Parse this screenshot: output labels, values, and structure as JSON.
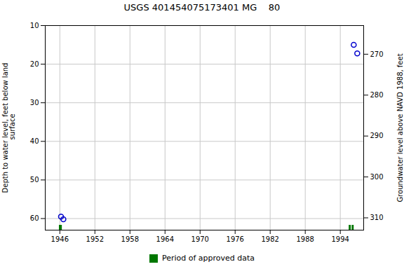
{
  "chart_data": {
    "type": "scatter",
    "title": "USGS 401454075173401 MG    80",
    "ylabel": "Depth to water level, feet below land\n surface",
    "y2label": "Groundwater level above NAVD 1988, feet",
    "xlim": [
      1943.5,
      1998.0
    ],
    "xticks": [
      1946,
      1952,
      1958,
      1964,
      1970,
      1976,
      1982,
      1988,
      1994
    ],
    "ylim": [
      63,
      10
    ],
    "yticks": [
      10,
      20,
      30,
      40,
      50,
      60
    ],
    "y2lim": [
      313,
      263
    ],
    "y2ticks": [
      270,
      280,
      290,
      300,
      310
    ],
    "grid": true,
    "legend": "bottom",
    "x": [
      1946.2,
      1946.6,
      1996.3,
      1996.9
    ],
    "values": [
      59.5,
      60.2,
      15.0,
      17.2
    ],
    "color": "#0000cc",
    "marker": "circle",
    "approved_periods": {
      "name": "Period of approved data",
      "color": "#007700",
      "start": [
        1945.9,
        1995.5,
        1996.0
      ],
      "width": [
        0.5,
        0.35,
        0.35
      ]
    }
  }
}
